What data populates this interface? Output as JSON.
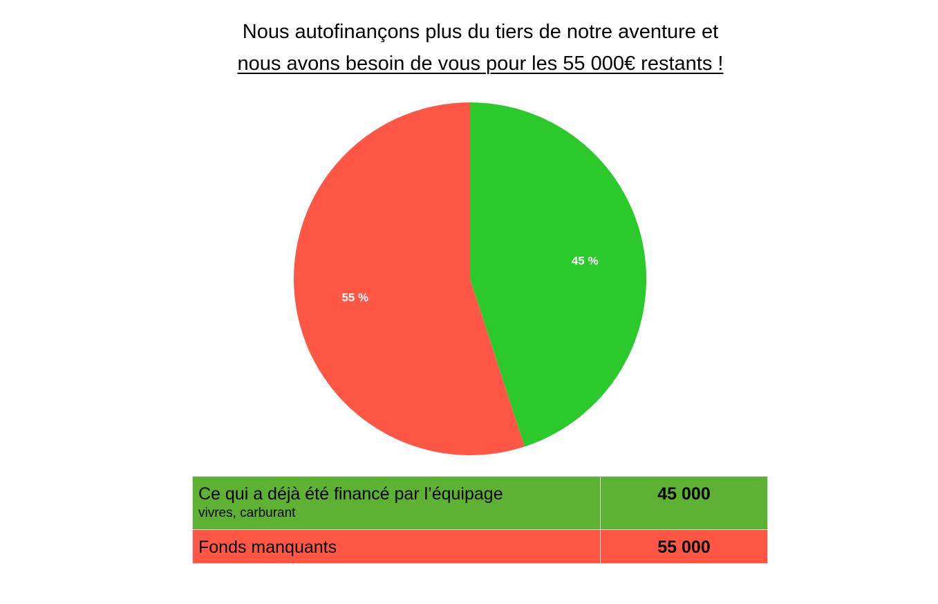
{
  "headline": {
    "line1": "Nous autofinançons plus du tiers de notre aventure et",
    "line2": "nous avons besoin de vous pour les 55 000€ restants !"
  },
  "chart_data": {
    "type": "pie",
    "slices": [
      {
        "label": "45 %",
        "value": 45,
        "color": "#2bc92b"
      },
      {
        "label": "55 %",
        "value": 55,
        "color": "#ff5645"
      }
    ],
    "start_angle_deg": 0,
    "direction": "clockwise"
  },
  "table": {
    "rows": [
      {
        "label": "Ce qui a déjà été financé par l’équipage",
        "sub": "vivres, carburant",
        "amount": "45 000",
        "color": "#5db234"
      },
      {
        "label": "Fonds manquants",
        "amount": "55 000",
        "color": "#ff5645"
      }
    ]
  }
}
